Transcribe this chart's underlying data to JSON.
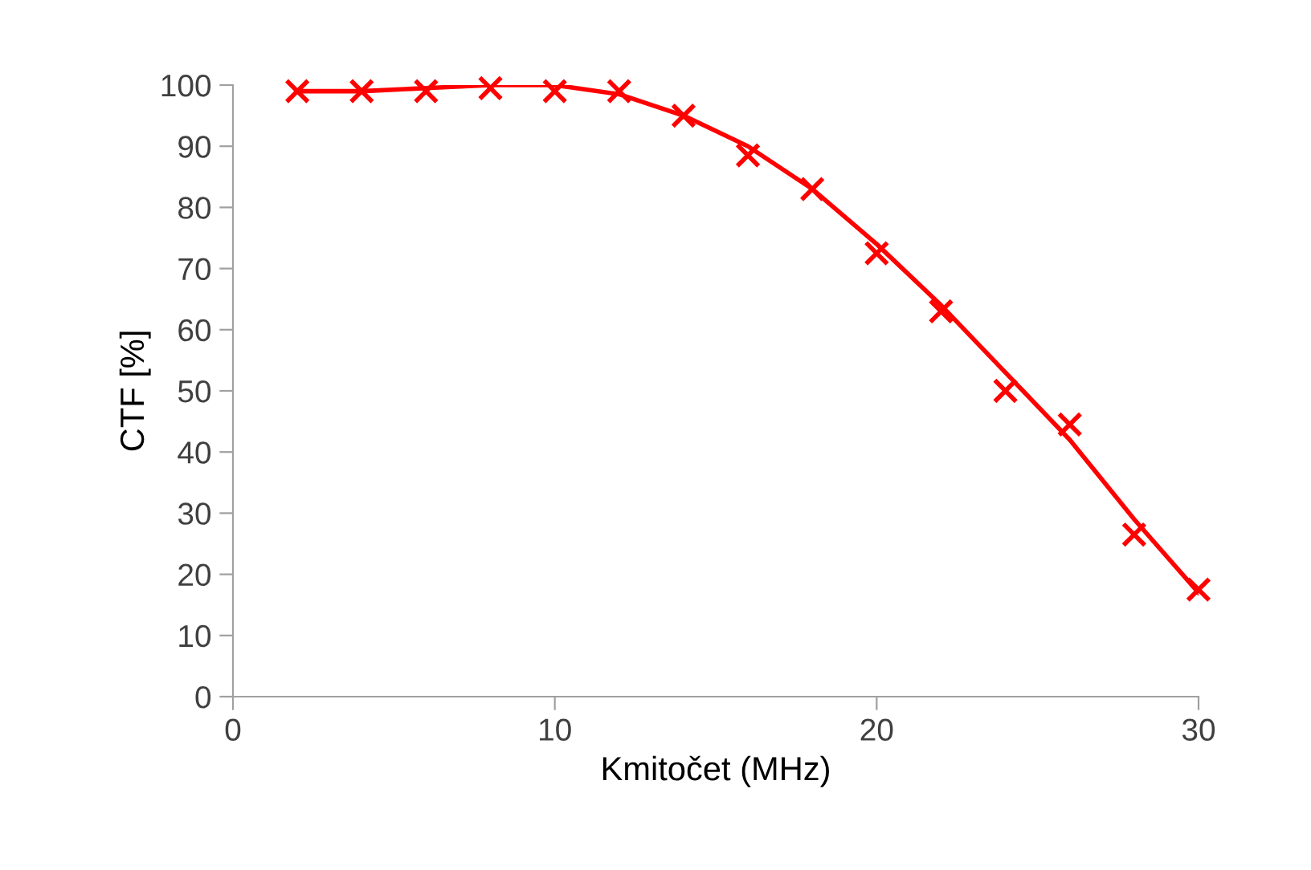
{
  "chart_data": {
    "type": "scatter",
    "xlabel": "Kmitočet (MHz)",
    "ylabel": "CTF [%]",
    "series": [
      {
        "type": "line",
        "color": "#ff0000",
        "marker": "none",
        "line_style": "solid",
        "x": [
          2,
          4,
          6,
          8,
          10,
          12,
          14,
          16,
          18,
          20,
          22,
          24,
          26,
          28,
          30
        ],
        "values": [
          99,
          99,
          99.5,
          100,
          100,
          98.5,
          95,
          90,
          83,
          74,
          64,
          53,
          42,
          29,
          17
        ]
      },
      {
        "color": "#ff0000",
        "marker": "cross",
        "x": [
          2,
          4,
          6,
          8,
          10,
          12,
          14,
          16,
          18,
          20,
          22,
          24,
          26,
          28,
          30
        ],
        "values": [
          99,
          99,
          99,
          99.5,
          99,
          99,
          95,
          88.5,
          83,
          72.5,
          63,
          50,
          44.5,
          26.5,
          17.5
        ]
      }
    ],
    "xlim": [
      0,
      30
    ],
    "xticks": [
      0,
      10,
      20,
      30
    ],
    "ylim": [
      0,
      100
    ],
    "yticks": [
      0,
      10,
      20,
      30,
      40,
      50,
      60,
      70,
      80,
      90,
      100
    ],
    "grid": false,
    "legend": false
  }
}
